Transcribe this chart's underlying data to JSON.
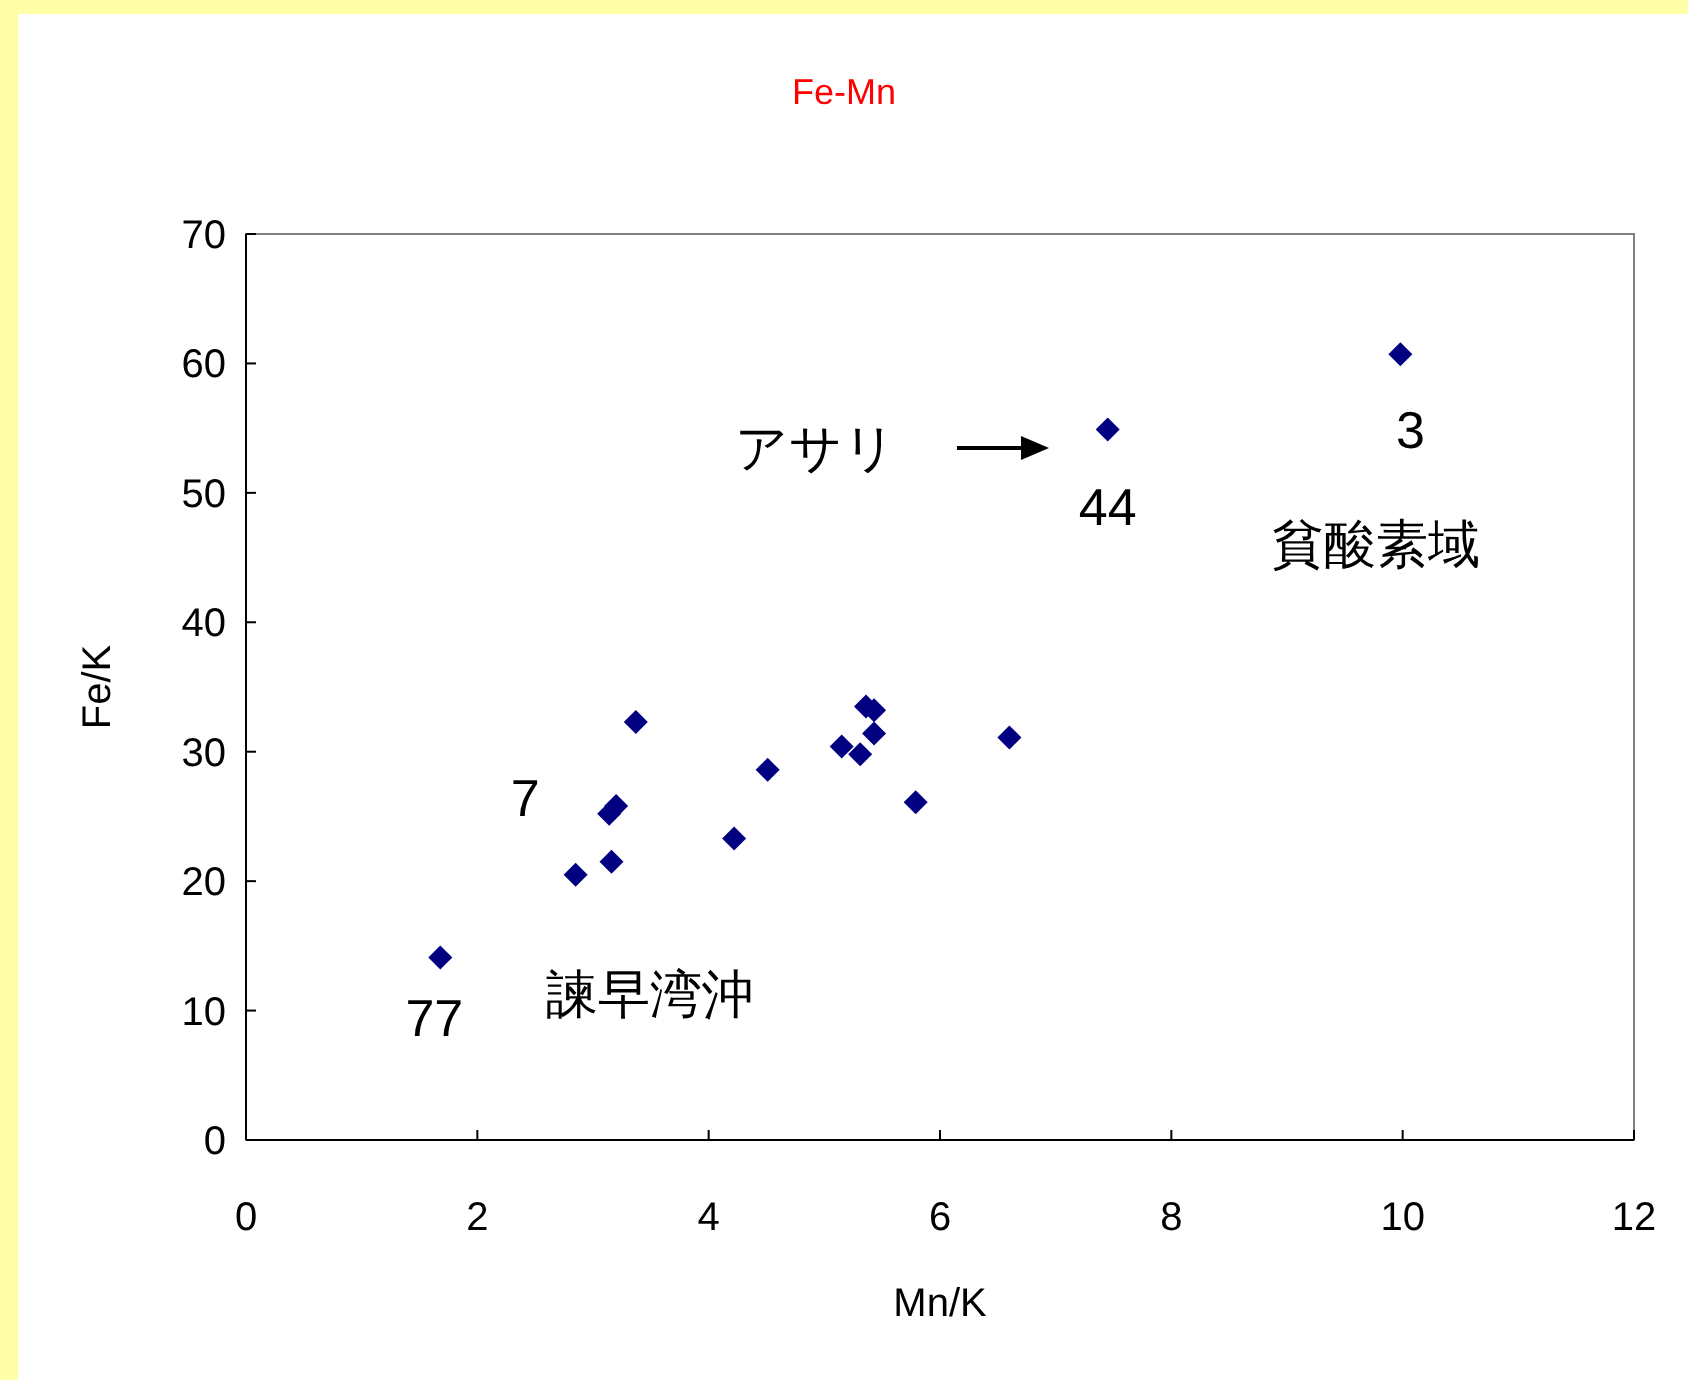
{
  "chart_data": {
    "type": "scatter",
    "title": "Fe-Mn",
    "xlabel": "Mn/K",
    "ylabel": "Fe/K",
    "x": [
      1.68,
      2.85,
      3.16,
      3.14,
      3.2,
      3.37,
      4.22,
      4.51,
      5.15,
      5.31,
      5.36,
      5.43,
      5.43,
      5.79,
      6.6,
      7.45,
      9.98
    ],
    "values": [
      14.1,
      20.5,
      21.5,
      25.2,
      25.8,
      32.3,
      23.3,
      28.6,
      30.4,
      29.8,
      33.5,
      33.2,
      31.4,
      26.1,
      31.1,
      54.9,
      60.7
    ],
    "color": "#000080",
    "marker": "diamond",
    "xlim": [
      0,
      12
    ],
    "xticks": [
      0,
      2,
      4,
      6,
      8,
      10,
      12
    ],
    "ylim": [
      0,
      70
    ],
    "yticks": [
      0,
      10,
      20,
      30,
      40,
      50,
      60,
      70
    ],
    "grid": false,
    "annotations": [
      {
        "text": "7",
        "x": 3.14,
        "y": 25.2
      },
      {
        "text": "77",
        "x": 1.68,
        "y": 14.1
      },
      {
        "text": "3",
        "x": 9.98,
        "y": 60.7
      },
      {
        "text": "44",
        "x": 7.45,
        "y": 54.9
      },
      "貧酸素域",
      "諫早湾沖",
      "アサリ"
    ]
  }
}
